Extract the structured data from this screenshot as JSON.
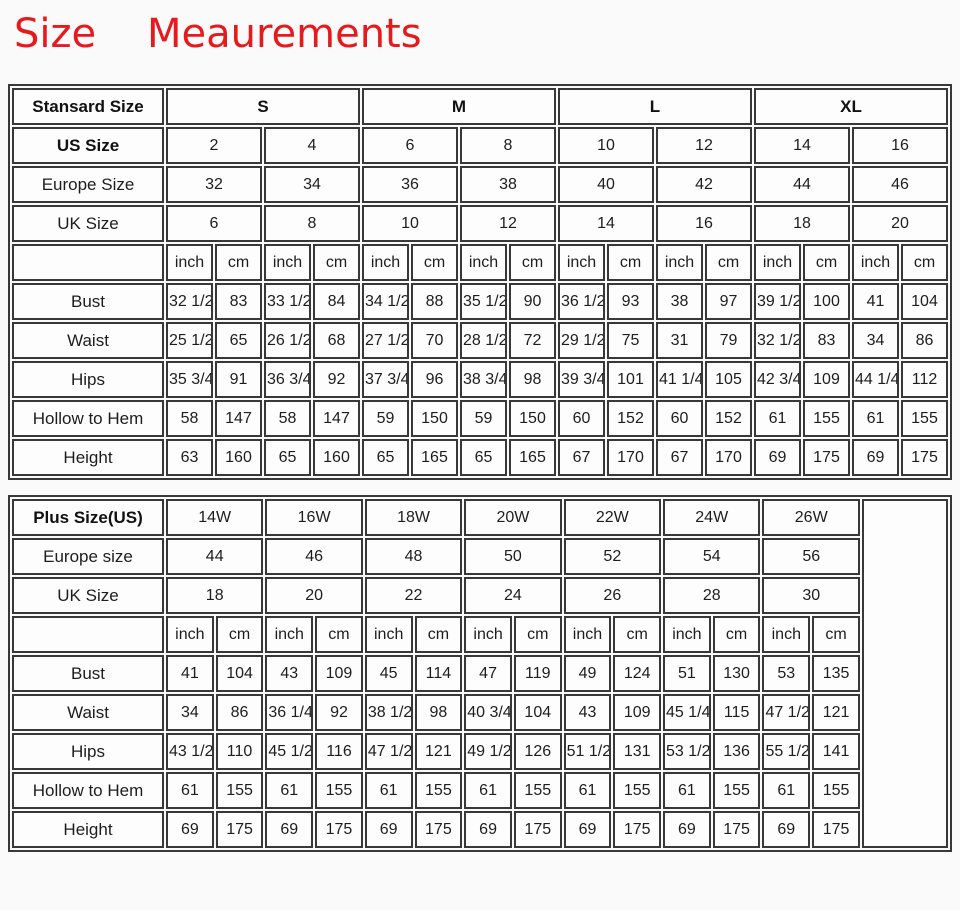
{
  "title": {
    "text": "Size    Meaurements",
    "color": "#e6191d"
  },
  "standard_table": {
    "caption": "Stansard Size",
    "rows": [
      [
        {
          "t": "Stansard Size",
          "b": 1
        },
        {
          "t": "S",
          "c": 4,
          "b": 1
        },
        {
          "t": "M",
          "c": 4,
          "b": 1
        },
        {
          "t": "L",
          "c": 4,
          "b": 1
        },
        {
          "t": "XL",
          "c": 4,
          "b": 1
        }
      ],
      [
        {
          "t": "US Size",
          "b": 1
        },
        {
          "t": "2",
          "c": 2
        },
        {
          "t": "4",
          "c": 2
        },
        {
          "t": "6",
          "c": 2
        },
        {
          "t": "8",
          "c": 2
        },
        {
          "t": "10",
          "c": 2
        },
        {
          "t": "12",
          "c": 2
        },
        {
          "t": "14",
          "c": 2
        },
        {
          "t": "16",
          "c": 2
        }
      ],
      [
        {
          "t": "Europe Size"
        },
        {
          "t": "32",
          "c": 2
        },
        {
          "t": "34",
          "c": 2
        },
        {
          "t": "36",
          "c": 2
        },
        {
          "t": "38",
          "c": 2
        },
        {
          "t": "40",
          "c": 2
        },
        {
          "t": "42",
          "c": 2
        },
        {
          "t": "44",
          "c": 2
        },
        {
          "t": "46",
          "c": 2
        }
      ],
      [
        {
          "t": "UK Size"
        },
        {
          "t": "6",
          "c": 2
        },
        {
          "t": "8",
          "c": 2
        },
        {
          "t": "10",
          "c": 2
        },
        {
          "t": "12",
          "c": 2
        },
        {
          "t": "14",
          "c": 2
        },
        {
          "t": "16",
          "c": 2
        },
        {
          "t": "18",
          "c": 2
        },
        {
          "t": "20",
          "c": 2
        }
      ],
      [
        {
          "t": ""
        },
        "inch",
        "cm",
        "inch",
        "cm",
        "inch",
        "cm",
        "inch",
        "cm",
        "inch",
        "cm",
        "inch",
        "cm",
        "inch",
        "cm",
        "inch",
        "cm"
      ],
      [
        {
          "t": "Bust"
        },
        "32 1/2",
        "83",
        "33 1/2",
        "84",
        "34 1/2",
        "88",
        "35 1/2",
        "90",
        "36 1/2",
        "93",
        "38",
        "97",
        "39 1/2",
        "100",
        "41",
        "104"
      ],
      [
        {
          "t": "Waist"
        },
        "25 1/2",
        "65",
        "26 1/2",
        "68",
        "27 1/2",
        "70",
        "28 1/2",
        "72",
        "29 1/2",
        "75",
        "31",
        "79",
        "32 1/2",
        "83",
        "34",
        "86"
      ],
      [
        {
          "t": "Hips"
        },
        "35 3/4",
        "91",
        "36 3/4",
        "92",
        "37 3/4",
        "96",
        "38 3/4",
        "98",
        "39 3/4",
        "101",
        "41 1/4",
        "105",
        "42 3/4",
        "109",
        "44 1/4",
        "112"
      ],
      [
        {
          "t": "Hollow to Hem"
        },
        "58",
        "147",
        "58",
        "147",
        "59",
        "150",
        "59",
        "150",
        "60",
        "152",
        "60",
        "152",
        "61",
        "155",
        "61",
        "155"
      ],
      [
        {
          "t": "Height"
        },
        "63",
        "160",
        "65",
        "160",
        "65",
        "165",
        "65",
        "165",
        "67",
        "170",
        "67",
        "170",
        "69",
        "175",
        "69",
        "175"
      ]
    ]
  },
  "plus_table": {
    "caption": "Plus Size(US)",
    "rows": [
      [
        {
          "t": "Plus Size(US)",
          "b": 1
        },
        {
          "t": "14W",
          "c": 2
        },
        {
          "t": "16W",
          "c": 2
        },
        {
          "t": "18W",
          "c": 2
        },
        {
          "t": "20W",
          "c": 2
        },
        {
          "t": "22W",
          "c": 2
        },
        {
          "t": "24W",
          "c": 2
        },
        {
          "t": "26W",
          "c": 2
        },
        {
          "t": "",
          "r": 9
        }
      ],
      [
        {
          "t": "Europe size"
        },
        {
          "t": "44",
          "c": 2
        },
        {
          "t": "46",
          "c": 2
        },
        {
          "t": "48",
          "c": 2
        },
        {
          "t": "50",
          "c": 2
        },
        {
          "t": "52",
          "c": 2
        },
        {
          "t": "54",
          "c": 2
        },
        {
          "t": "56",
          "c": 2
        }
      ],
      [
        {
          "t": "UK Size"
        },
        {
          "t": "18",
          "c": 2
        },
        {
          "t": "20",
          "c": 2
        },
        {
          "t": "22",
          "c": 2
        },
        {
          "t": "24",
          "c": 2
        },
        {
          "t": "26",
          "c": 2
        },
        {
          "t": "28",
          "c": 2
        },
        {
          "t": "30",
          "c": 2
        }
      ],
      [
        {
          "t": ""
        },
        "inch",
        "cm",
        "inch",
        "cm",
        "inch",
        "cm",
        "inch",
        "cm",
        "inch",
        "cm",
        "inch",
        "cm",
        "inch",
        "cm"
      ],
      [
        {
          "t": "Bust"
        },
        "41",
        "104",
        "43",
        "109",
        "45",
        "114",
        "47",
        "119",
        "49",
        "124",
        "51",
        "130",
        "53",
        "135"
      ],
      [
        {
          "t": "Waist"
        },
        "34",
        "86",
        "36 1/4",
        "92",
        "38 1/2",
        "98",
        "40 3/4",
        "104",
        "43",
        "109",
        "45 1/4",
        "115",
        "47 1/2",
        "121"
      ],
      [
        {
          "t": "Hips"
        },
        "43 1/2",
        "110",
        "45 1/2",
        "116",
        "47 1/2",
        "121",
        "49 1/2",
        "126",
        "51 1/2",
        "131",
        "53 1/2",
        "136",
        "55 1/2",
        "141"
      ],
      [
        {
          "t": "Hollow to Hem"
        },
        "61",
        "155",
        "61",
        "155",
        "61",
        "155",
        "61",
        "155",
        "61",
        "155",
        "61",
        "155",
        "61",
        "155"
      ],
      [
        {
          "t": "Height"
        },
        "69",
        "175",
        "69",
        "175",
        "69",
        "175",
        "69",
        "175",
        "69",
        "175",
        "69",
        "175",
        "69",
        "175"
      ]
    ]
  }
}
